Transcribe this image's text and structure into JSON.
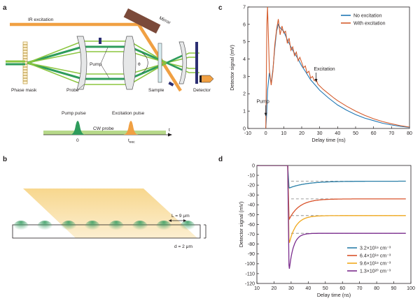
{
  "panels": {
    "a": {
      "letter": "a",
      "labels": {
        "ir_excitation": "IR excitation",
        "mirror": "Mirror",
        "pump": "Pump",
        "probe": "Probe",
        "theta": "θ",
        "phase_mask": "Phase mask",
        "sample": "Sample",
        "detector": "Detector"
      },
      "timeline": {
        "pump_pulse": "Pump pulse",
        "excitation_pulse": "Excitation pulse",
        "cw_probe": "CW probe",
        "t_axis": "t",
        "zero": "0",
        "t_exc_main": "t",
        "t_exc_sub": "exc"
      },
      "colors": {
        "ir_beam": "#f0a043",
        "pump_beam": "#2e9c5c",
        "probe_beam": "#8cc63f",
        "mirror": "#7b4a3a",
        "detector": "#f0a043"
      }
    },
    "b": {
      "letter": "b",
      "period_label": "L = 9 μm",
      "thickness_label": "d = 2 μm",
      "colors": {
        "excitation": "#f6d07a",
        "grating": "#3a9e64"
      }
    },
    "c": {
      "letter": "c"
    },
    "d": {
      "letter": "d"
    }
  },
  "chart_data": [
    {
      "panel": "c",
      "type": "line",
      "title": "",
      "xlabel": "Delay time (ns)",
      "ylabel": "Detector signal (mV)",
      "xlim": [
        -10,
        80
      ],
      "ylim": [
        0,
        7
      ],
      "xticks": [
        -10,
        0,
        10,
        20,
        30,
        40,
        50,
        60,
        70,
        80
      ],
      "yticks": [
        0,
        1,
        2,
        3,
        4,
        5,
        6,
        7
      ],
      "grid": false,
      "legend_position": "top-right",
      "series": [
        {
          "name": "No excitation",
          "color": "#1f77b4",
          "x": [
            0,
            0.5,
            1,
            2,
            3,
            4,
            5,
            6,
            7,
            8,
            10,
            12,
            15,
            18,
            20,
            22,
            25,
            28,
            30,
            35,
            40,
            45,
            50,
            55,
            60,
            65,
            70,
            75,
            80
          ],
          "y": [
            0,
            0.8,
            2.2,
            3.2,
            2.6,
            3.4,
            4.6,
            5.6,
            6.0,
            5.8,
            5.6,
            5.1,
            4.5,
            4.0,
            3.6,
            3.3,
            2.8,
            2.45,
            2.2,
            1.75,
            1.35,
            1.05,
            0.8,
            0.6,
            0.45,
            0.3,
            0.2,
            0.12,
            0.06
          ]
        },
        {
          "name": "With excitation",
          "color": "#d45b2b",
          "x": [
            0,
            0.3,
            0.6,
            1,
            2,
            3,
            4,
            5,
            6,
            7,
            8,
            9,
            10,
            11,
            12,
            13,
            14,
            15,
            16,
            17,
            18,
            19,
            20,
            21,
            22,
            23,
            24,
            25,
            26,
            27,
            28,
            29,
            30,
            32,
            35,
            38,
            40,
            45,
            50,
            55,
            60,
            65,
            70,
            75,
            80
          ],
          "y": [
            0,
            2.5,
            6.0,
            7.0,
            3.4,
            2.5,
            3.3,
            4.8,
            5.7,
            6.3,
            5.4,
            5.9,
            5.5,
            5.6,
            4.9,
            5.2,
            4.5,
            4.7,
            4.2,
            4.4,
            3.9,
            4.1,
            3.8,
            3.5,
            3.6,
            3.2,
            3.3,
            2.9,
            3.0,
            2.75,
            2.85,
            2.55,
            2.45,
            2.25,
            2.0,
            1.75,
            1.6,
            1.28,
            1.0,
            0.76,
            0.56,
            0.4,
            0.27,
            0.16,
            0.08
          ]
        }
      ],
      "annotations": [
        {
          "text": "Pump",
          "x": 0,
          "y": 1.3
        },
        {
          "text": "Excitation",
          "x": 28,
          "y": 3.1
        }
      ]
    },
    {
      "panel": "d",
      "type": "line",
      "title": "",
      "xlabel": "Delay time (ns)",
      "ylabel": "Detector signal (mV)",
      "xlim": [
        10,
        100
      ],
      "ylim": [
        -120,
        0
      ],
      "xticks": [
        10,
        20,
        30,
        40,
        50,
        60,
        70,
        80,
        90,
        100
      ],
      "yticks": [
        0,
        -10,
        -20,
        -30,
        -40,
        -50,
        -60,
        -70,
        -80,
        -90,
        -100,
        -110,
        -120
      ],
      "grid": false,
      "legend_position": "bottom-right",
      "pulse_time": 28,
      "series": [
        {
          "name": "3.2×10¹⁹ cm⁻³",
          "color": "#2a7fa8",
          "initial": -23,
          "plateau": -16,
          "tau": 10
        },
        {
          "name": "6.4×10¹⁹ cm⁻³",
          "color": "#d9532b",
          "initial": -55,
          "plateau": -34,
          "tau": 6
        },
        {
          "name": "9.6×10¹⁹ cm⁻³",
          "color": "#f0a81c",
          "initial": -80,
          "plateau": -51,
          "tau": 4
        },
        {
          "name": "1.3×10²⁰ cm⁻³",
          "color": "#7b2d8e",
          "initial": -108,
          "plateau": -69,
          "tau": 2.5
        }
      ],
      "dashed_levels": [
        -16,
        -34,
        -51,
        -69
      ]
    }
  ]
}
